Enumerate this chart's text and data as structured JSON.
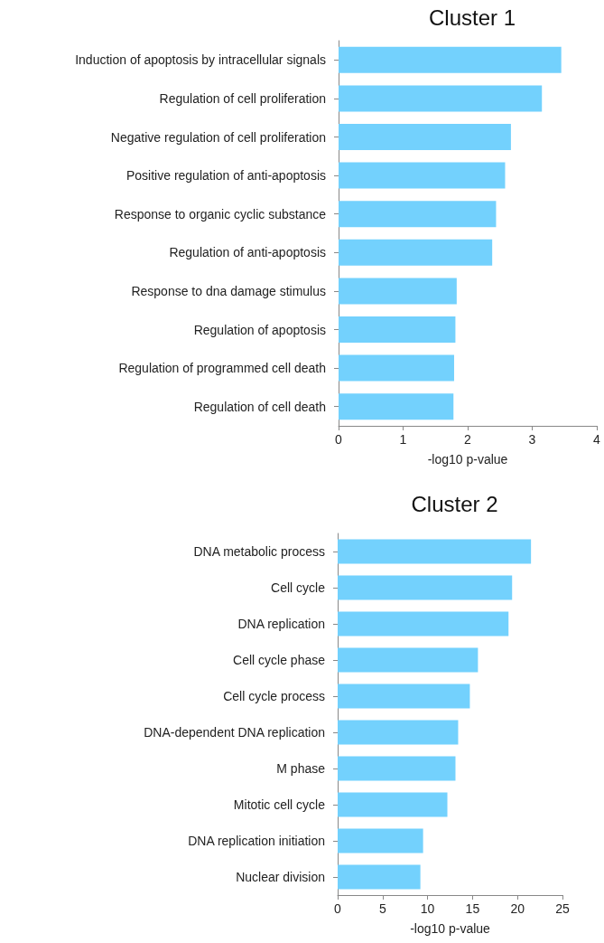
{
  "chart_data": [
    {
      "type": "bar",
      "orientation": "horizontal",
      "title": "Cluster 1",
      "xlabel": "-log10 p-value",
      "categories": [
        "Induction of apoptosis by intracellular signals",
        "Regulation of cell proliferation",
        "Negative regulation of cell proliferation",
        "Positive regulation of anti-apoptosis",
        "Response to organic cyclic substance",
        "Regulation of anti-apoptosis",
        "Response to dna damage stimulus",
        "Regulation of apoptosis",
        "Regulation of programmed cell death",
        "Regulation of cell death"
      ],
      "values": [
        3.45,
        3.15,
        2.67,
        2.58,
        2.44,
        2.38,
        1.83,
        1.81,
        1.79,
        1.78
      ],
      "color": "#73d1fd",
      "xlim": [
        0,
        4
      ],
      "xticks": [
        0,
        1,
        2,
        3,
        4
      ],
      "grid": false
    },
    {
      "type": "bar",
      "orientation": "horizontal",
      "title": "Cluster 2",
      "xlabel": "-log10 p-value",
      "categories": [
        "DNA metabolic process",
        "Cell cycle",
        "DNA replication",
        "Cell cycle phase",
        "Cell cycle process",
        "DNA-dependent DNA replication",
        "M phase",
        "Mitotic cell cycle",
        "DNA replication initiation",
        "Nuclear division"
      ],
      "values": [
        21.5,
        19.4,
        19.0,
        15.6,
        14.7,
        13.4,
        13.1,
        12.2,
        9.5,
        9.2
      ],
      "color": "#73d1fd",
      "xlim": [
        0,
        25
      ],
      "xticks": [
        0,
        5,
        10,
        15,
        20,
        25
      ],
      "grid": false
    }
  ]
}
